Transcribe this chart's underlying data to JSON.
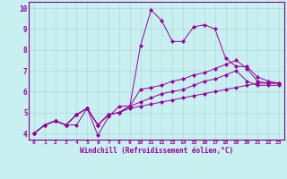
{
  "xlabel": "Windchill (Refroidissement éolien,°C)",
  "bg_color": "#c8f0f0",
  "grid_color": "#b0d8d8",
  "spine_color": "#880088",
  "line_color": "#990099",
  "xlim": [
    -0.5,
    23.5
  ],
  "ylim": [
    3.7,
    10.3
  ],
  "xticks": [
    0,
    1,
    2,
    3,
    4,
    5,
    6,
    7,
    8,
    9,
    10,
    11,
    12,
    13,
    14,
    15,
    16,
    17,
    18,
    19,
    20,
    21,
    22,
    23
  ],
  "yticks": [
    4,
    5,
    6,
    7,
    8,
    9,
    10
  ],
  "series": [
    [
      4.0,
      4.4,
      4.6,
      4.4,
      4.4,
      5.2,
      3.9,
      4.8,
      5.3,
      5.3,
      8.2,
      9.9,
      9.4,
      8.4,
      8.4,
      9.1,
      9.2,
      9.0,
      7.6,
      7.2,
      7.2,
      6.7,
      6.5,
      6.4
    ],
    [
      4.0,
      4.4,
      4.6,
      4.4,
      4.9,
      5.2,
      4.4,
      4.9,
      5.0,
      5.3,
      6.1,
      6.2,
      6.3,
      6.5,
      6.6,
      6.8,
      6.9,
      7.1,
      7.3,
      7.5,
      7.1,
      6.5,
      6.4,
      6.4
    ],
    [
      4.0,
      4.4,
      4.6,
      4.4,
      4.9,
      5.2,
      4.4,
      4.9,
      5.0,
      5.3,
      5.5,
      5.7,
      5.9,
      6.0,
      6.1,
      6.3,
      6.5,
      6.6,
      6.8,
      7.0,
      6.5,
      6.3,
      6.3,
      6.3
    ],
    [
      4.0,
      4.4,
      4.6,
      4.4,
      4.9,
      5.2,
      4.4,
      4.9,
      5.0,
      5.2,
      5.3,
      5.4,
      5.5,
      5.6,
      5.7,
      5.8,
      5.9,
      6.0,
      6.1,
      6.2,
      6.3,
      6.4,
      6.4,
      6.4
    ]
  ],
  "xtick_fontsize": 4.5,
  "ytick_fontsize": 5.5,
  "xlabel_fontsize": 5.5,
  "linewidth": 0.7,
  "markersize": 2.2
}
